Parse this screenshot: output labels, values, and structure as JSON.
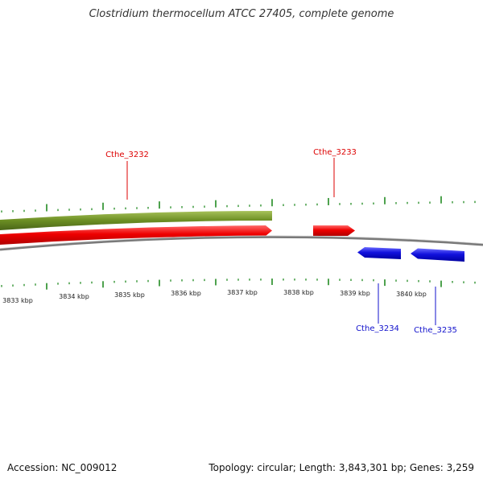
{
  "title": "Clostridium thermocellum ATCC 27405, complete genome",
  "footer": {
    "accession": "Accession: NC_009012",
    "summary": "Topology: circular; Length: 3,843,301 bp; Genes: 3,259"
  },
  "colors": {
    "forward_gene": "#ee0000",
    "reverse_gene": "#1111dd",
    "gc_bar": "#6b8e23",
    "backbone": "#888888",
    "ticks": "#228b22"
  },
  "scale": {
    "labels": [
      "3833 kbp",
      "3834 kbp",
      "3835 kbp",
      "3836 kbp",
      "3837 kbp",
      "3838 kbp",
      "3839 kbp",
      "3840 kbp"
    ]
  },
  "genes": [
    {
      "name": "Cthe_3232",
      "strand": "+"
    },
    {
      "name": "Cthe_3233",
      "strand": "+"
    },
    {
      "name": "Cthe_3234",
      "strand": "-"
    },
    {
      "name": "Cthe_3235",
      "strand": "-"
    }
  ]
}
